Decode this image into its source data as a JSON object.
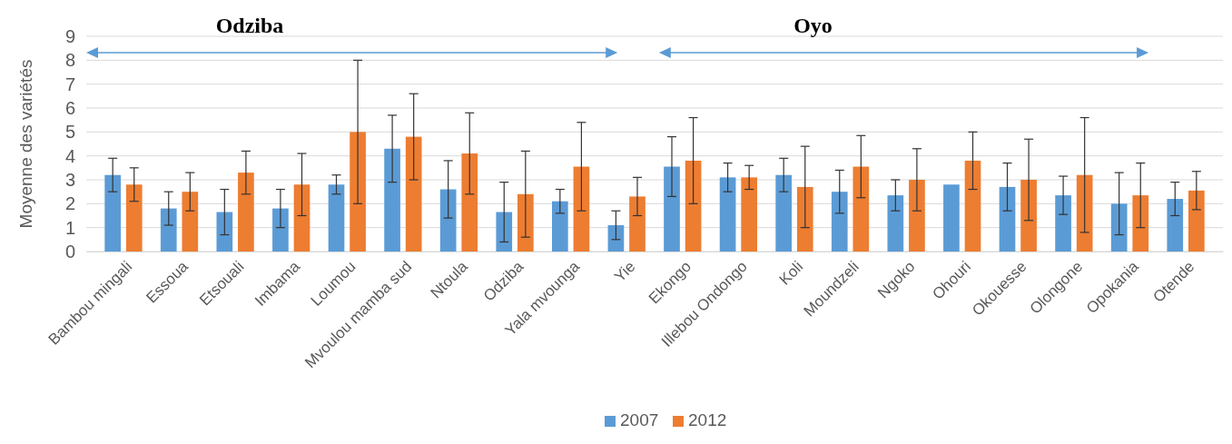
{
  "chart_data": {
    "type": "bar",
    "ylabel": "Moyenne des variétés",
    "categories": [
      "Bambou mingali",
      "Essoua",
      "Etsouali",
      "Imbama",
      "Loumou",
      "Mvoulou mamba sud",
      "Ntoula",
      "Odziba",
      "Yala mvounga",
      "Yie",
      "Ekongo",
      "Illebou Ondongo",
      "Koli",
      "Moundzeli",
      "Ngoko",
      "Ohouri",
      "Okouesse",
      "Olongone",
      "Opokania",
      "Otende"
    ],
    "series": [
      {
        "name": "2007",
        "color": "#5b9bd5",
        "values": [
          3.2,
          1.8,
          1.65,
          1.8,
          2.8,
          4.3,
          2.6,
          1.65,
          2.1,
          1.1,
          3.55,
          3.1,
          3.2,
          2.5,
          2.35,
          2.8,
          2.7,
          2.35,
          2.0,
          2.2
        ],
        "errors": [
          0.7,
          0.7,
          0.95,
          0.8,
          0.4,
          1.4,
          1.2,
          1.25,
          0.5,
          0.6,
          1.25,
          0.6,
          0.7,
          0.9,
          0.65,
          null,
          1.0,
          0.8,
          1.3,
          0.7
        ]
      },
      {
        "name": "2012",
        "color": "#ed7d31",
        "values": [
          2.8,
          2.5,
          3.3,
          2.8,
          5.0,
          4.8,
          4.1,
          2.4,
          3.55,
          2.3,
          3.8,
          3.1,
          2.7,
          3.55,
          3.0,
          3.8,
          3.0,
          3.2,
          2.35,
          2.55
        ],
        "errors": [
          0.7,
          0.8,
          0.9,
          1.3,
          3.0,
          1.8,
          1.7,
          1.8,
          1.85,
          0.8,
          1.8,
          0.5,
          1.7,
          1.3,
          1.3,
          1.2,
          1.7,
          2.4,
          1.35,
          0.8
        ]
      }
    ],
    "ylim": [
      0,
      9
    ],
    "yticks": [
      0,
      1,
      2,
      3,
      4,
      5,
      6,
      7,
      8,
      9
    ],
    "grid": "y",
    "legend": "bottom",
    "annotations": [
      "Odziba",
      "Oyo"
    ]
  }
}
